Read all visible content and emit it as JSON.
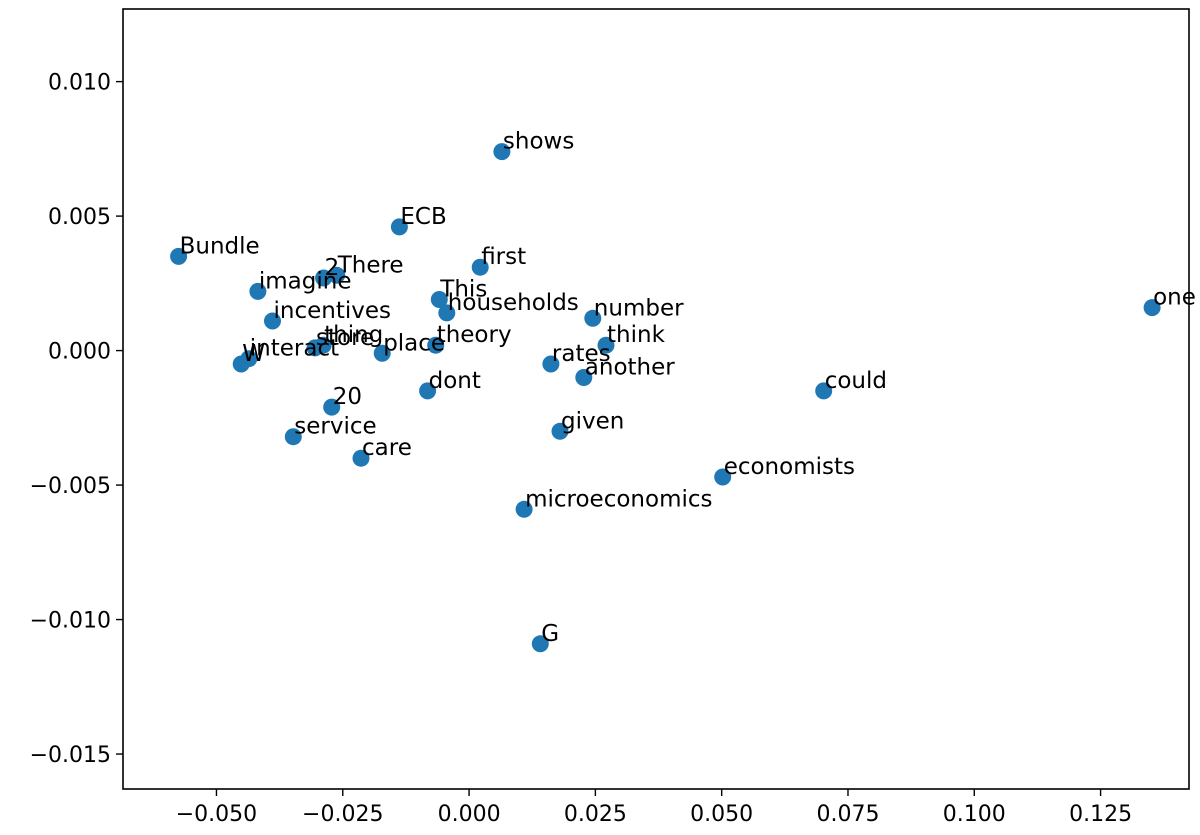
{
  "chart_data": {
    "type": "scatter",
    "title": "",
    "xlabel": "",
    "ylabel": "",
    "xlim": [
      -0.0685,
      0.1425
    ],
    "ylim": [
      -0.0163,
      0.0127
    ],
    "grid": false,
    "marker_color": "#1f77b4",
    "x_ticks": [
      -0.05,
      -0.025,
      0.0,
      0.025,
      0.05,
      0.075,
      0.1,
      0.125
    ],
    "x_tick_labels": [
      "−0.050",
      "−0.025",
      "0.000",
      "0.025",
      "0.050",
      "0.075",
      "0.100",
      "0.125"
    ],
    "y_ticks": [
      0.01,
      0.005,
      0.0,
      -0.005,
      -0.01,
      -0.015
    ],
    "y_tick_labels": [
      "0.010",
      "0.005",
      "0.000",
      "−0.005",
      "−0.010",
      "−0.015"
    ],
    "points": [
      {
        "label": "shows",
        "x": 0.0065,
        "y": 0.0074
      },
      {
        "label": "ECB",
        "x": -0.0138,
        "y": 0.0046
      },
      {
        "label": "Bundle",
        "x": -0.0575,
        "y": 0.0035
      },
      {
        "label": "first",
        "x": 0.0022,
        "y": 0.0031
      },
      {
        "label": "2",
        "x": -0.0288,
        "y": 0.0027
      },
      {
        "label": "There",
        "x": -0.0262,
        "y": 0.0028
      },
      {
        "label": "imagine",
        "x": -0.0418,
        "y": 0.0022
      },
      {
        "label": "This",
        "x": -0.0059,
        "y": 0.0019
      },
      {
        "label": "households",
        "x": -0.0044,
        "y": 0.0014
      },
      {
        "label": "number",
        "x": 0.0245,
        "y": 0.0012
      },
      {
        "label": "one",
        "x": 0.1352,
        "y": 0.0016
      },
      {
        "label": "incentives",
        "x": -0.0389,
        "y": 0.0011
      },
      {
        "label": "thing",
        "x": -0.0289,
        "y": 0.0002
      },
      {
        "label": "theory",
        "x": -0.0066,
        "y": 0.0002
      },
      {
        "label": "think",
        "x": 0.0271,
        "y": 0.0002
      },
      {
        "label": "store",
        "x": -0.0305,
        "y": 0.0001
      },
      {
        "label": "place",
        "x": -0.0172,
        "y": -0.0001
      },
      {
        "label": "interact",
        "x": -0.0436,
        "y": -0.0003
      },
      {
        "label": "W",
        "x": -0.0451,
        "y": -0.0005
      },
      {
        "label": "rates",
        "x": 0.0162,
        "y": -0.0005
      },
      {
        "label": "another",
        "x": 0.0227,
        "y": -0.001
      },
      {
        "label": "dont",
        "x": -0.0082,
        "y": -0.0015
      },
      {
        "label": "could",
        "x": 0.0702,
        "y": -0.0015
      },
      {
        "label": "20",
        "x": -0.0272,
        "y": -0.0021
      },
      {
        "label": "given",
        "x": 0.018,
        "y": -0.003
      },
      {
        "label": "service",
        "x": -0.0348,
        "y": -0.0032
      },
      {
        "label": "care",
        "x": -0.0214,
        "y": -0.004
      },
      {
        "label": "economists",
        "x": 0.0502,
        "y": -0.0047
      },
      {
        "label": "microeconomics",
        "x": 0.0109,
        "y": -0.0059
      },
      {
        "label": "G",
        "x": 0.0141,
        "y": -0.0109
      }
    ]
  }
}
